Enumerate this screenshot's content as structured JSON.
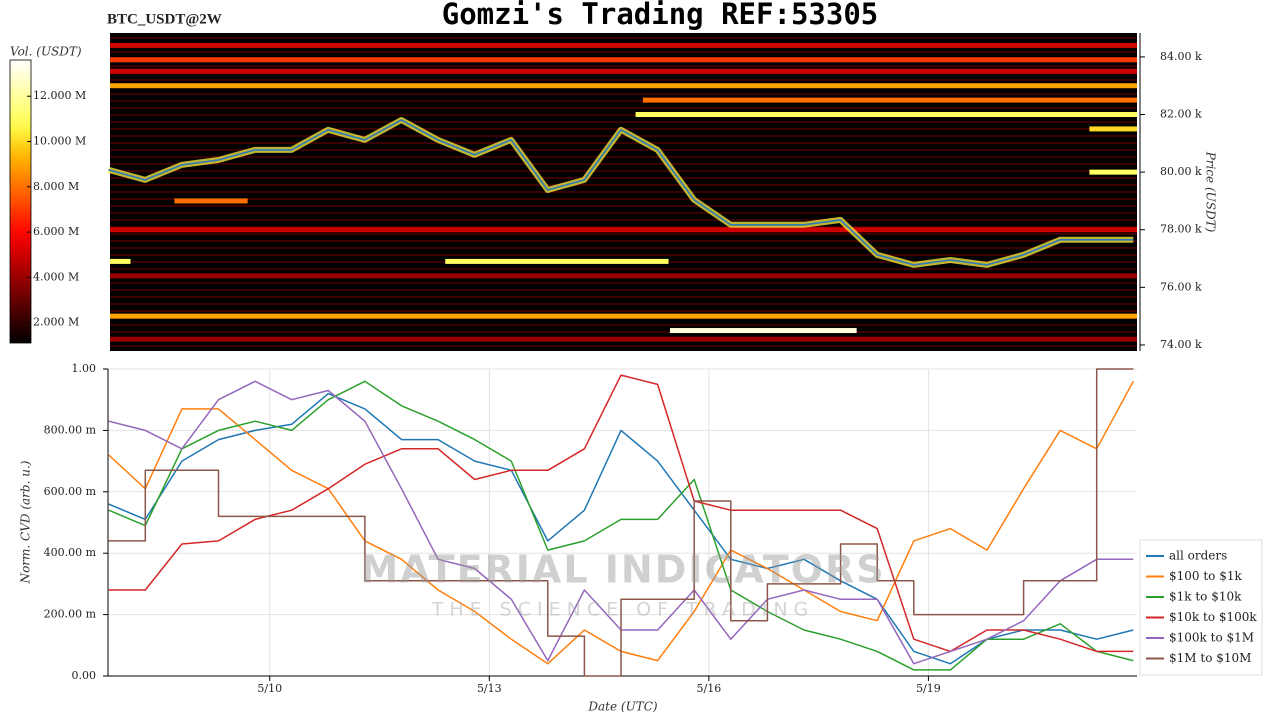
{
  "chart_data": [
    {
      "type": "heatmap",
      "title": "Gomzi's Trading REF:53305",
      "subtitle": "BTC_USDT@2W",
      "ylabel": "Price (USDT)",
      "colorbar_label": "Vol. (USDT)",
      "colormap": "hot",
      "xlim": [
        7.82,
        21.85
      ],
      "ylim": [
        73790,
        84830
      ],
      "yticks": [
        {
          "value": 74000,
          "label": "74.00 k"
        },
        {
          "value": 76000,
          "label": "76.00 k"
        },
        {
          "value": 78000,
          "label": "78.00 k"
        },
        {
          "value": 80000,
          "label": "80.00 k"
        },
        {
          "value": 82000,
          "label": "82.00 k"
        },
        {
          "value": 84000,
          "label": "84.00 k"
        }
      ],
      "colorbar_lim": [
        1100000,
        13600000
      ],
      "colorbar_ticks": [
        {
          "value": 2000000,
          "label": "2.000 M"
        },
        {
          "value": 4000000,
          "label": "4.000 M"
        },
        {
          "value": 6000000,
          "label": "6.000 M"
        },
        {
          "value": 8000000,
          "label": "8.000 M"
        },
        {
          "value": 10000000,
          "label": "10.000 M"
        },
        {
          "value": 12000000,
          "label": "12.000 M"
        }
      ],
      "levels": [
        {
          "price": 84400,
          "start": 7.82,
          "end": 21.85,
          "volume": 5000000
        },
        {
          "price": 83900,
          "start": 7.82,
          "end": 21.85,
          "volume": 7000000
        },
        {
          "price": 83500,
          "start": 7.82,
          "end": 21.85,
          "volume": 5000000
        },
        {
          "price": 83000,
          "start": 7.82,
          "end": 21.85,
          "volume": 9000000
        },
        {
          "price": 82500,
          "start": 15.1,
          "end": 21.85,
          "volume": 8000000
        },
        {
          "price": 82000,
          "start": 15.0,
          "end": 21.85,
          "volume": 11000000
        },
        {
          "price": 81500,
          "start": 21.2,
          "end": 21.85,
          "volume": 10000000
        },
        {
          "price": 80000,
          "start": 21.2,
          "end": 21.85,
          "volume": 11000000
        },
        {
          "price": 79000,
          "start": 8.7,
          "end": 9.7,
          "volume": 8000000
        },
        {
          "price": 78000,
          "start": 7.82,
          "end": 21.85,
          "volume": 5000000
        },
        {
          "price": 76900,
          "start": 7.82,
          "end": 8.1,
          "volume": 11000000
        },
        {
          "price": 76900,
          "start": 12.4,
          "end": 15.45,
          "volume": 11000000
        },
        {
          "price": 76400,
          "start": 7.82,
          "end": 21.85,
          "volume": 4000000
        },
        {
          "price": 75000,
          "start": 7.82,
          "end": 21.85,
          "volume": 9000000
        },
        {
          "price": 74500,
          "start": 15.47,
          "end": 18.02,
          "volume": 13000000
        },
        {
          "price": 74200,
          "start": 7.82,
          "end": 21.85,
          "volume": 4000000
        }
      ],
      "x": [
        7.8,
        8.3,
        8.8,
        9.3,
        9.8,
        10.3,
        10.8,
        11.3,
        11.8,
        12.3,
        12.8,
        13.3,
        13.8,
        14.3,
        14.8,
        15.3,
        15.8,
        16.3,
        16.8,
        17.3,
        17.8,
        18.3,
        18.8,
        19.3,
        19.8,
        20.3,
        20.8,
        21.3,
        21.8
      ],
      "price": [
        80080,
        79730,
        80250,
        80420,
        80770,
        80770,
        81470,
        81120,
        81810,
        81120,
        80600,
        81120,
        79380,
        79730,
        81470,
        80770,
        79040,
        78170,
        78170,
        78170,
        78340,
        77130,
        76780,
        76950,
        76780,
        77130,
        77650,
        77650,
        77650
      ],
      "price_color": "#2b7bb9"
    },
    {
      "type": "line",
      "xlabel": "Date (UTC)",
      "ylabel": "Norm. CVD (arb. u.)",
      "watermark": "MATERIAL INDICATORS",
      "watermark_subtitle": "THE SCIENCE OF TRADING",
      "xlim": [
        7.79,
        21.85
      ],
      "ylim": [
        0,
        1
      ],
      "xticks": [
        {
          "value": 10,
          "label": "5/10"
        },
        {
          "value": 13,
          "label": "5/13"
        },
        {
          "value": 16,
          "label": "5/16"
        },
        {
          "value": 19,
          "label": "5/19"
        }
      ],
      "yticks": [
        {
          "value": 0,
          "label": "0.00"
        },
        {
          "value": 0.2,
          "label": "200.00 m"
        },
        {
          "value": 0.4,
          "label": "400.00 m"
        },
        {
          "value": 0.6,
          "label": "600.00 m"
        },
        {
          "value": 0.8,
          "label": "800.00 m"
        },
        {
          "value": 1,
          "label": "1.00"
        }
      ],
      "grid": true,
      "legend": "right",
      "x": [
        7.8,
        8.3,
        8.8,
        9.3,
        9.8,
        10.3,
        10.8,
        11.3,
        11.8,
        12.3,
        12.8,
        13.3,
        13.8,
        14.3,
        14.8,
        15.3,
        15.8,
        16.3,
        16.8,
        17.3,
        17.8,
        18.3,
        18.8,
        19.3,
        19.8,
        20.3,
        20.8,
        21.3,
        21.8
      ],
      "series": [
        {
          "name": "all orders",
          "color": "#1f77b4",
          "values": [
            0.56,
            0.51,
            0.7,
            0.77,
            0.8,
            0.82,
            0.92,
            0.87,
            0.77,
            0.77,
            0.7,
            0.67,
            0.44,
            0.54,
            0.8,
            0.7,
            0.54,
            0.38,
            0.35,
            0.38,
            0.31,
            0.25,
            0.08,
            0.04,
            0.12,
            0.15,
            0.15,
            0.12,
            0.15
          ]
        },
        {
          "name": "$100 to $1k",
          "color": "#ff7f0e",
          "values": [
            0.72,
            0.61,
            0.87,
            0.87,
            0.77,
            0.67,
            0.61,
            0.44,
            0.38,
            0.28,
            0.21,
            0.12,
            0.04,
            0.15,
            0.08,
            0.05,
            0.21,
            0.41,
            0.35,
            0.28,
            0.21,
            0.18,
            0.44,
            0.48,
            0.41,
            0.61,
            0.8,
            0.74,
            0.96
          ]
        },
        {
          "name": "$1k to $10k",
          "color": "#2ca02c",
          "values": [
            0.54,
            0.49,
            0.74,
            0.8,
            0.83,
            0.8,
            0.9,
            0.96,
            0.88,
            0.83,
            0.77,
            0.7,
            0.41,
            0.44,
            0.51,
            0.51,
            0.64,
            0.28,
            0.21,
            0.15,
            0.12,
            0.08,
            0.02,
            0.02,
            0.12,
            0.12,
            0.17,
            0.08,
            0.05
          ]
        },
        {
          "name": "$10k to $100k",
          "color": "#d62728",
          "values": [
            0.28,
            0.28,
            0.43,
            0.44,
            0.51,
            0.54,
            0.61,
            0.69,
            0.74,
            0.74,
            0.64,
            0.67,
            0.67,
            0.74,
            0.98,
            0.95,
            0.57,
            0.54,
            0.54,
            0.54,
            0.54,
            0.48,
            0.12,
            0.08,
            0.15,
            0.15,
            0.12,
            0.08,
            0.08
          ]
        },
        {
          "name": "$100k to $1M",
          "color": "#9467bd",
          "values": [
            0.83,
            0.8,
            0.74,
            0.9,
            0.96,
            0.9,
            0.93,
            0.83,
            0.61,
            0.38,
            0.35,
            0.25,
            0.05,
            0.28,
            0.15,
            0.15,
            0.28,
            0.12,
            0.25,
            0.28,
            0.25,
            0.25,
            0.04,
            0.08,
            0.12,
            0.18,
            0.31,
            0.38,
            0.38
          ]
        },
        {
          "name": "$1M to $10M",
          "color": "#8c564b",
          "drawstyle": "steps-post",
          "values": [
            0.44,
            0.67,
            0.67,
            0.52,
            0.52,
            0.52,
            0.52,
            0.31,
            0.31,
            0.31,
            0.31,
            0.31,
            0.13,
            0,
            0.25,
            0.25,
            0.57,
            0.18,
            0.3,
            0.3,
            0.43,
            0.31,
            0.2,
            0.2,
            0.2,
            0.31,
            0.31,
            1,
            1
          ]
        }
      ]
    }
  ]
}
